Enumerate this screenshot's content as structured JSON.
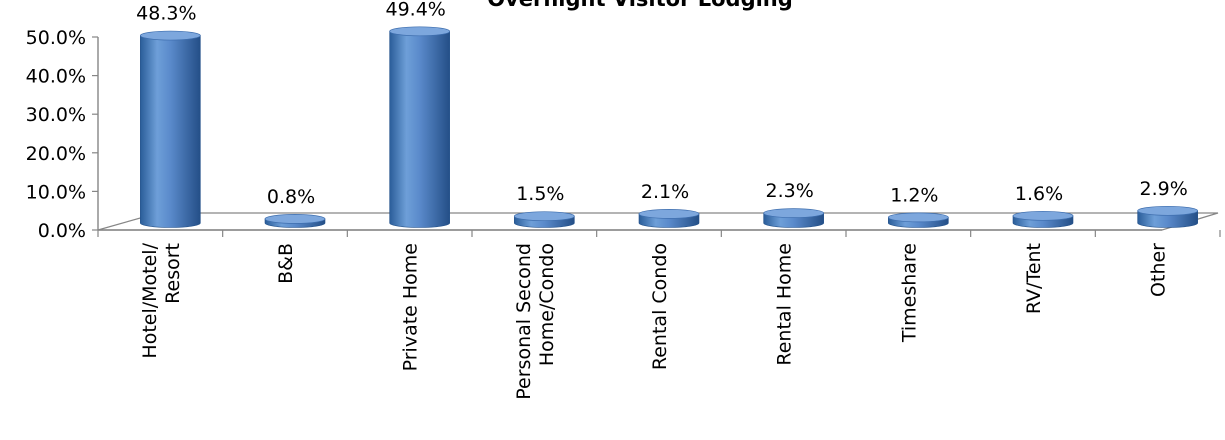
{
  "chart_data": {
    "type": "bar",
    "title": "Overnight Visitor Lodging",
    "categories": [
      [
        "Hotel/Motel/",
        "Resort"
      ],
      [
        "B&B"
      ],
      [
        "Private Home"
      ],
      [
        "Personal Second",
        "Home/Condo"
      ],
      [
        "Rental Condo"
      ],
      [
        "Rental Home"
      ],
      [
        "Timeshare"
      ],
      [
        "RV/Tent"
      ],
      [
        "Other"
      ]
    ],
    "values": [
      48.3,
      0.8,
      49.4,
      1.5,
      2.1,
      2.3,
      1.2,
      1.6,
      2.9
    ],
    "value_labels": [
      "48.3%",
      "0.8%",
      "49.4%",
      "1.5%",
      "2.1%",
      "2.3%",
      "1.2%",
      "1.6%",
      "2.9%"
    ],
    "y_ticks": [
      "0.0%",
      "10.0%",
      "20.0%",
      "30.0%",
      "40.0%",
      "50.0%"
    ],
    "ylim": [
      0,
      50
    ],
    "xlabel": "",
    "ylabel": "",
    "grid": false,
    "legend": "none",
    "colors": {
      "bar": "#4F81BD",
      "bar_dark": "#2C5A94",
      "bar_light": "#8DB3E2",
      "axis": "#868686"
    }
  }
}
